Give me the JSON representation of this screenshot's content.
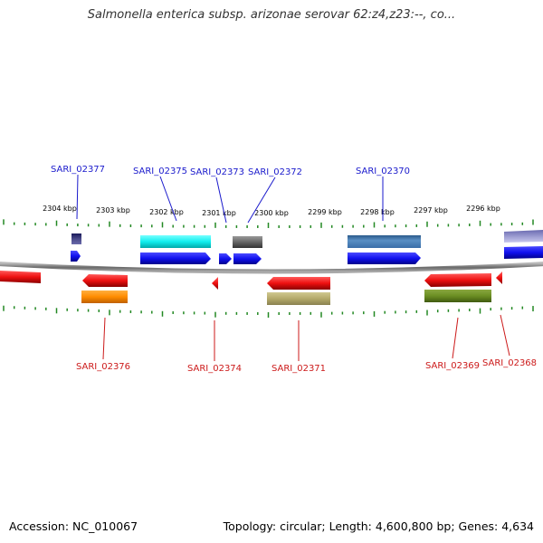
{
  "title": "Salmonella enterica subsp. arizonae serovar 62:z4,z23:--, co...",
  "footer": {
    "accession": "Accession: NC_010067",
    "stats": "Topology: circular; Length: 4,600,800 bp; Genes: 4,634"
  },
  "kbp_labels": [
    "2304 kbp",
    "2303 kbp",
    "2302 kbp",
    "2301 kbp",
    "2300 kbp",
    "2299 kbp",
    "2298 kbp",
    "2297 kbp",
    "2296 kbp"
  ],
  "genes": [
    {
      "name": "SARI_02377",
      "strand": "forward"
    },
    {
      "name": "SARI_02375",
      "strand": "forward"
    },
    {
      "name": "SARI_02373",
      "strand": "forward"
    },
    {
      "name": "SARI_02372",
      "strand": "forward"
    },
    {
      "name": "SARI_02370",
      "strand": "forward"
    },
    {
      "name": "SARI_02376",
      "strand": "reverse"
    },
    {
      "name": "SARI_02374",
      "strand": "reverse"
    },
    {
      "name": "SARI_02371",
      "strand": "reverse"
    },
    {
      "name": "SARI_02369",
      "strand": "reverse"
    },
    {
      "name": "SARI_02368",
      "strand": "reverse"
    }
  ],
  "colors": {
    "forward_gene": "#1010ee",
    "reverse_gene": "#ee1010",
    "forward_label": "#1a1acc",
    "reverse_label": "#cc1a1a",
    "tick": "#228822",
    "backbone": "#888888"
  }
}
